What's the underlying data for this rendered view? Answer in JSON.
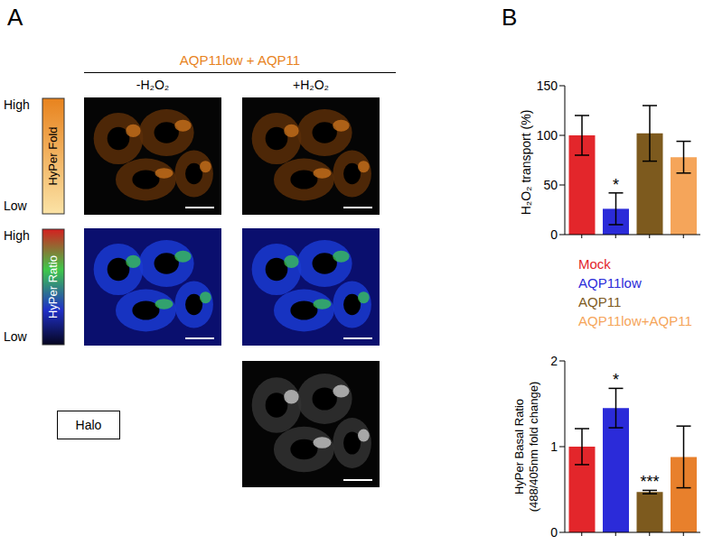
{
  "panel_labels": [
    "A",
    "B"
  ],
  "panel_a": {
    "header": "AQP11low + AQP11",
    "columns": [
      "-H₂O₂",
      "+H₂O₂"
    ],
    "rows": [
      {
        "label": "HyPer Fold",
        "high": "High",
        "low": "Low"
      },
      {
        "label": "HyPer Ratio",
        "high": "High",
        "low": "Low"
      },
      {
        "label": "Halo"
      }
    ]
  },
  "chart_data": [
    {
      "type": "bar",
      "y_label": [
        "H₂O₂ transport (%)"
      ],
      "categories": [
        "Mock",
        "AQP11low",
        "AQP11",
        "AQP11low+AQP11"
      ],
      "values": [
        100,
        26,
        102,
        78
      ],
      "errors": [
        20,
        16,
        28,
        16
      ],
      "colors": [
        "#e3262b",
        "#2b2bd9",
        "#7d5a1e",
        "#f5a55a"
      ],
      "ylim": [
        0,
        150
      ],
      "yticks": [
        0,
        50,
        100,
        150
      ],
      "annotations": [
        {
          "category": "AQP11low",
          "text": "*"
        }
      ],
      "tick_labels": "y",
      "legend": "bottom"
    },
    {
      "type": "bar",
      "y_label": [
        "HyPer Basal Ratio",
        "(488/405nm fold change)"
      ],
      "categories": [
        "Mock",
        "AQP11low",
        "AQP11",
        "AQP11low+AQP11"
      ],
      "values": [
        1.0,
        1.45,
        0.47,
        0.88
      ],
      "errors": [
        0.21,
        0.23,
        0.02,
        0.36
      ],
      "colors": [
        "#e3262b",
        "#2b2bd9",
        "#7d5a1e",
        "#e8802c"
      ],
      "ylim": [
        0,
        2
      ],
      "yticks": [
        0,
        1,
        2
      ],
      "annotations": [
        {
          "category": "AQP11low",
          "text": "*"
        },
        {
          "category": "AQP11",
          "text": "***"
        }
      ],
      "tick_labels": "y"
    }
  ]
}
